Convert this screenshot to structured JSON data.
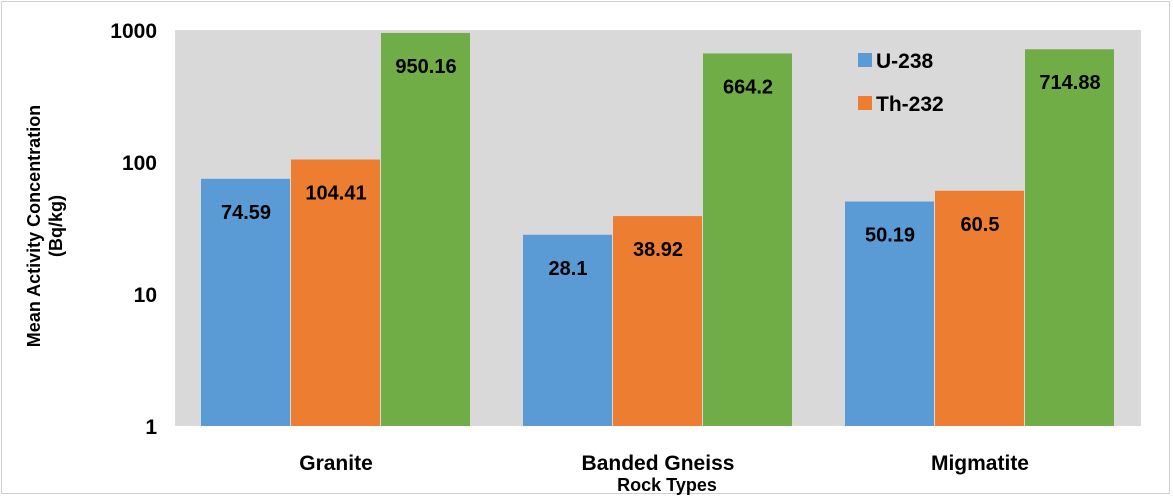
{
  "chart_data": {
    "type": "bar",
    "scale": "log",
    "categories": [
      "Granite",
      "Banded Gneiss",
      "Migmatite"
    ],
    "series": [
      {
        "name": "U-238",
        "color": "#5b9bd5",
        "values": [
          74.59,
          28.1,
          50.19
        ]
      },
      {
        "name": "Th-232",
        "color": "#ed7d31",
        "values": [
          104.41,
          38.92,
          60.5
        ]
      },
      {
        "name": "",
        "color": "#70ad47",
        "values": [
          950.16,
          664.2,
          714.88
        ]
      }
    ],
    "data_labels": [
      [
        "74.59",
        "28.1",
        "50.19"
      ],
      [
        "104.41",
        "38.92",
        "60.5"
      ],
      [
        "950.16",
        "664.2",
        "714.88"
      ]
    ],
    "ylabel_line1": "Mean Activity Concentration",
    "ylabel_line2": "(Bq/kg)",
    "xlabel": "Rock Types",
    "ylim": [
      1,
      1000
    ],
    "yticks": [
      "1",
      "10",
      "100",
      "1000"
    ],
    "plot_background": "#d9d9d9",
    "legend_position": "top-right",
    "grid": false
  }
}
